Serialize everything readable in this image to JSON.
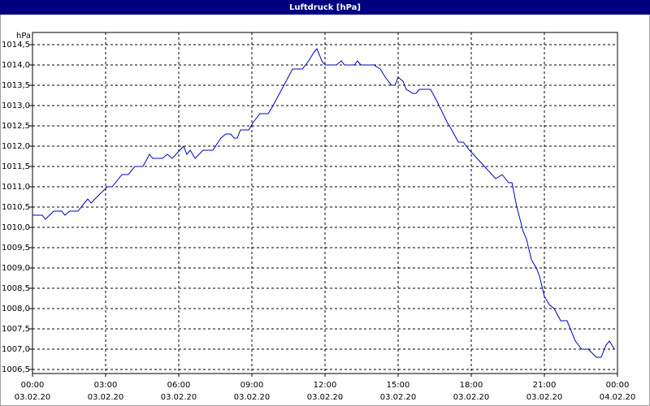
{
  "chart_data": {
    "type": "line",
    "title": "Luftdruck [hPa]",
    "y_unit": "hPa",
    "x": [
      0,
      0.4,
      0.53,
      0.87,
      1.2,
      1.33,
      1.53,
      1.87,
      2.13,
      2.27,
      2.4,
      2.73,
      3.07,
      3.27,
      3.67,
      3.93,
      4.2,
      4.53,
      4.8,
      4.93,
      5.33,
      5.53,
      5.73,
      6.2,
      6.33,
      6.47,
      6.67,
      7,
      7.4,
      7.73,
      7.93,
      8.13,
      8.27,
      8.4,
      8.53,
      8.87,
      9.07,
      9.33,
      9.67,
      9.87,
      10.67,
      11.07,
      11.33,
      11.53,
      11.67,
      11.87,
      12,
      12.47,
      12.67,
      12.8,
      13.2,
      13.33,
      13.47,
      14,
      14.27,
      14.47,
      14.73,
      14.87,
      15,
      15.2,
      15.33,
      15.6,
      15.73,
      15.87,
      16.33,
      16.6,
      17,
      17.2,
      17.47,
      17.67,
      17.93,
      19,
      19.27,
      19.53,
      19.67,
      19.87,
      20.13,
      20.27,
      20.47,
      20.67,
      20.8,
      21,
      21.2,
      21.4,
      21.67,
      21.93,
      22.27,
      22.53,
      22.8,
      23.13,
      23.33,
      23.53,
      23.67,
      23.87
    ],
    "series": [
      {
        "name": "Luftdruck",
        "color": "#0000c0",
        "values": [
          1010.3,
          1010.3,
          1010.2,
          1010.4,
          1010.4,
          1010.3,
          1010.4,
          1010.4,
          1010.6,
          1010.7,
          1010.6,
          1010.8,
          1011.0,
          1011.0,
          1011.3,
          1011.3,
          1011.5,
          1011.5,
          1011.8,
          1011.7,
          1011.7,
          1011.8,
          1011.7,
          1012.0,
          1011.8,
          1011.9,
          1011.7,
          1011.9,
          1011.9,
          1012.2,
          1012.3,
          1012.3,
          1012.2,
          1012.2,
          1012.4,
          1012.4,
          1012.6,
          1012.8,
          1012.8,
          1013.0,
          1013.9,
          1013.9,
          1014.1,
          1014.3,
          1014.4,
          1014.1,
          1014.0,
          1014.0,
          1014.1,
          1014.0,
          1014.0,
          1014.1,
          1014.0,
          1014.0,
          1013.9,
          1013.7,
          1013.5,
          1013.5,
          1013.7,
          1013.6,
          1013.4,
          1013.3,
          1013.3,
          1013.4,
          1013.4,
          1013.1,
          1012.6,
          1012.4,
          1012.1,
          1012.1,
          1011.9,
          1011.2,
          1011.3,
          1011.1,
          1011.1,
          1010.5,
          1009.9,
          1009.7,
          1009.2,
          1009.0,
          1008.8,
          1008.3,
          1008.1,
          1008.0,
          1007.7,
          1007.7,
          1007.2,
          1007.0,
          1007.0,
          1006.8,
          1006.8,
          1007.1,
          1007.2,
          1007.0
        ]
      }
    ],
    "xlim": [
      0,
      24
    ],
    "xticks": [
      {
        "value": 0,
        "label": "00:00"
      },
      {
        "value": 3,
        "label": "03:00"
      },
      {
        "value": 6,
        "label": "06:00"
      },
      {
        "value": 9,
        "label": "09:00"
      },
      {
        "value": 12,
        "label": "12:00"
      },
      {
        "value": 15,
        "label": "15:00"
      },
      {
        "value": 18,
        "label": "18:00"
      },
      {
        "value": 21,
        "label": "21:00"
      },
      {
        "value": 24,
        "label": "00:00"
      }
    ],
    "xtick_dates": [
      "03.02.20",
      "03.02.20",
      "03.02.20",
      "03.02.20",
      "03.02.20",
      "03.02.20",
      "03.02.20",
      "03.02.20",
      "04.02.20"
    ],
    "ylim": [
      1006.4,
      1014.8
    ],
    "yticks": [
      {
        "value": 1006.5,
        "label": "1006,5"
      },
      {
        "value": 1007,
        "label": "1007,0"
      },
      {
        "value": 1007.5,
        "label": "1007,5"
      },
      {
        "value": 1008,
        "label": "1008,0"
      },
      {
        "value": 1008.5,
        "label": "1008,5"
      },
      {
        "value": 1009,
        "label": "1009,0"
      },
      {
        "value": 1009.5,
        "label": "1009,5"
      },
      {
        "value": 1010,
        "label": "1010,0"
      },
      {
        "value": 1010.5,
        "label": "1010,5"
      },
      {
        "value": 1011,
        "label": "1011,0"
      },
      {
        "value": 1011.5,
        "label": "1011,5"
      },
      {
        "value": 1012,
        "label": "1012,0"
      },
      {
        "value": 1012.5,
        "label": "1012,5"
      },
      {
        "value": 1013,
        "label": "1013,0"
      },
      {
        "value": 1013.5,
        "label": "1013,5"
      },
      {
        "value": 1014,
        "label": "1014,0"
      },
      {
        "value": 1014.5,
        "label": "1014,5"
      }
    ],
    "grid": true
  }
}
